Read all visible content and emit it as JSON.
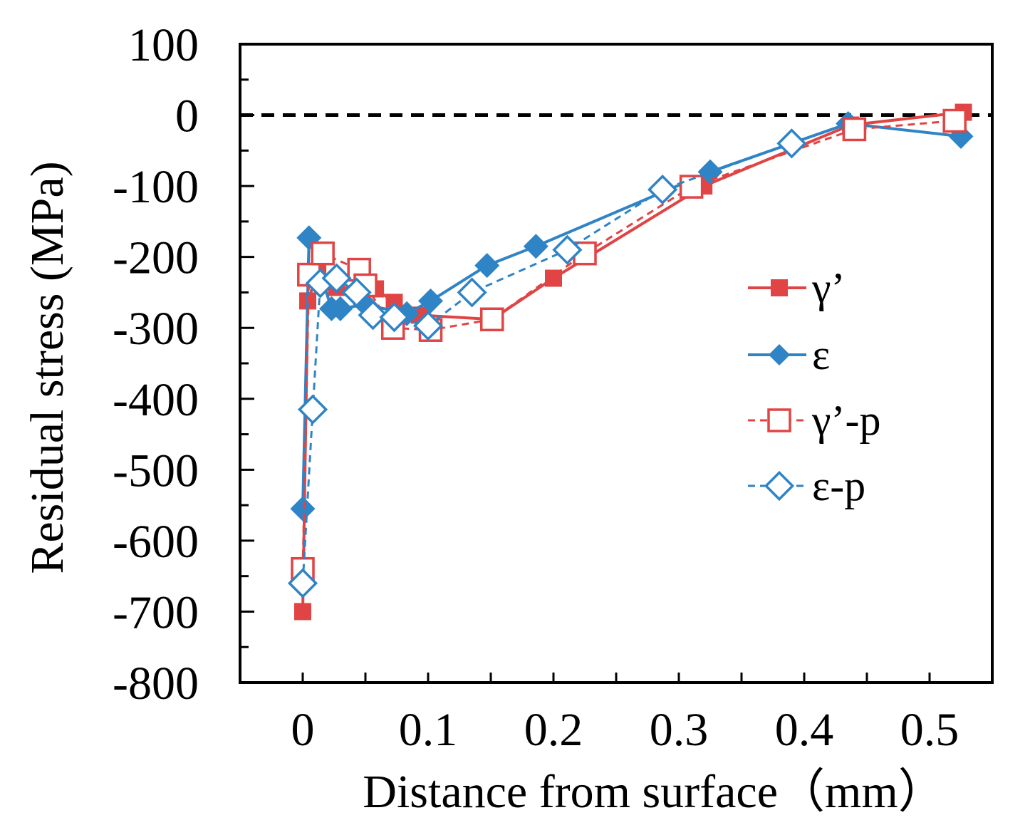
{
  "chart_data": {
    "type": "line",
    "xlabel": "Distance from surface（mm）",
    "ylabel": "Residual stress (MPa)",
    "xlim": [
      -0.05,
      0.55
    ],
    "ylim": [
      -800,
      100
    ],
    "xticks": [
      0,
      0.1,
      0.2,
      0.3,
      0.4,
      0.5
    ],
    "xtick_labels": [
      "0",
      "0.1",
      "0.2",
      "0.3",
      "0.4",
      "0.5"
    ],
    "yticks": [
      100,
      0,
      -100,
      -200,
      -300,
      -400,
      -500,
      -600,
      -700,
      -800
    ],
    "ytick_labels": [
      "100",
      "0",
      "-100",
      "-200",
      "-300",
      "-400",
      "-500",
      "-600",
      "-700",
      "-800"
    ],
    "grid": false,
    "reference_line": {
      "y": 0,
      "style": "dashed",
      "color": "#000000"
    },
    "legend_position": "right",
    "series": [
      {
        "name": "γ’",
        "color": "#e04444",
        "line": "solid",
        "marker": "square",
        "filled": true,
        "x": [
          0,
          0.004,
          0.012,
          0.027,
          0.058,
          0.073,
          0.093,
          0.151,
          0.2,
          0.32,
          0.437,
          0.527
        ],
        "y": [
          -700,
          -262,
          -223,
          -243,
          -245,
          -264,
          -282,
          -288,
          -230,
          -100,
          -14,
          4
        ]
      },
      {
        "name": "ε",
        "color": "#2f84c6",
        "line": "solid",
        "marker": "diamond",
        "filled": true,
        "x": [
          0,
          0.005,
          0.023,
          0.03,
          0.05,
          0.083,
          0.102,
          0.147,
          0.186,
          0.325,
          0.435,
          0.525
        ],
        "y": [
          -555,
          -173,
          -273,
          -273,
          -267,
          -280,
          -262,
          -212,
          -185,
          -80,
          -12,
          -30
        ]
      },
      {
        "name": "γ’-p",
        "color": "#e04444",
        "line": "dashed",
        "marker": "square",
        "filled": false,
        "x": [
          0,
          0.005,
          0.016,
          0.045,
          0.05,
          0.072,
          0.102,
          0.151,
          0.225,
          0.31,
          0.44,
          0.52
        ],
        "y": [
          -640,
          -225,
          -195,
          -218,
          -240,
          -300,
          -303,
          -288,
          -195,
          -101,
          -20,
          -8
        ]
      },
      {
        "name": "ε-p",
        "color": "#2f84c6",
        "line": "dashed",
        "marker": "diamond",
        "filled": false,
        "x": [
          0,
          0.008,
          0.014,
          0.027,
          0.043,
          0.056,
          0.073,
          0.1,
          0.135,
          0.211,
          0.287,
          0.39
        ],
        "y": [
          -660,
          -415,
          -237,
          -230,
          -250,
          -282,
          -285,
          -297,
          -250,
          -190,
          -105,
          -40
        ]
      }
    ]
  }
}
